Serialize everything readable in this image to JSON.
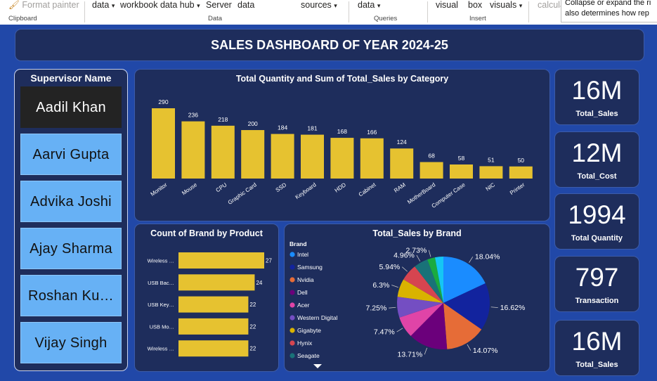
{
  "ribbon": {
    "items": [
      "Format painter",
      "data",
      "workbook data hub",
      "Server",
      "data",
      "sources",
      "data",
      "visual",
      "box",
      "visuals",
      "calcula"
    ],
    "groups": [
      "Clipboard",
      "Data",
      "Queries",
      "Insert"
    ],
    "tooltip_lines": [
      "Collapse or expand the ri",
      "also determines how rep"
    ]
  },
  "dashboard": {
    "title": "SALES DASHBOARD OF YEAR 2024-25",
    "supervisor": {
      "title": "Supervisor Name",
      "items": [
        "Aadil Khan",
        "Aarvi Gupta",
        "Advika Joshi",
        "Ajay Sharma",
        "Roshan Ku…",
        "Vijay Singh"
      ],
      "selected": "Aadil Khan"
    },
    "kpis": [
      {
        "value": "16M",
        "label": "Total_Sales"
      },
      {
        "value": "12M",
        "label": "Total_Cost"
      },
      {
        "value": "1994",
        "label": "Total Quantity"
      },
      {
        "value": "797",
        "label": "Transaction"
      },
      {
        "value": "16M",
        "label": "Total_Sales"
      }
    ]
  },
  "chart_data": [
    {
      "type": "bar",
      "title": "Total Quantity and Sum of Total_Sales by Category",
      "categories": [
        "Monitor",
        "Mouse",
        "CPU",
        "Graphic Card",
        "SSD",
        "Keyboard",
        "HDD",
        "Cabinet",
        "RAM",
        "MotherBoard",
        "Computer Case",
        "NIC",
        "Printer"
      ],
      "values": [
        290,
        236,
        218,
        200,
        184,
        181,
        168,
        166,
        124,
        68,
        58,
        51,
        50
      ],
      "color": "#e6c230"
    },
    {
      "type": "bar",
      "orientation": "horizontal",
      "title": "Count of Brand by Product",
      "categories": [
        "Wireless …",
        "USB Bac…",
        "USB Key…",
        "USB Mo…",
        "Wireless …"
      ],
      "values": [
        27,
        24,
        22,
        22,
        22
      ],
      "color": "#e6c230"
    },
    {
      "type": "pie",
      "title": "Total_Sales by Brand",
      "legend_title": "Brand",
      "legend": [
        "Intel",
        "Samsung",
        "Nvidia",
        "Dell",
        "Acer",
        "Western Digital",
        "Gigabyte",
        "Hynix",
        "Seagate"
      ],
      "slices": [
        {
          "value": 18.04,
          "label": "18.04%",
          "color": "#1a8cff"
        },
        {
          "value": 16.62,
          "label": "16.62%",
          "color": "#12239e"
        },
        {
          "value": 14.07,
          "label": "14.07%",
          "color": "#e66c37"
        },
        {
          "value": 13.71,
          "label": "13.71%",
          "color": "#6b007b"
        },
        {
          "value": 7.47,
          "label": "7.47%",
          "color": "#e044a7"
        },
        {
          "value": 7.25,
          "label": "7.25%",
          "color": "#744ec2"
        },
        {
          "value": 6.3,
          "label": "6.3%",
          "color": "#d9b300"
        },
        {
          "value": 5.94,
          "label": "5.94%",
          "color": "#d64550"
        },
        {
          "value": 4.96,
          "label": "4.96%",
          "color": "#197278"
        },
        {
          "value": 2.73,
          "label": "2.73%",
          "color": "#1aab40"
        },
        {
          "value": 2.91,
          "label": "",
          "color": "#15c6f4"
        }
      ]
    }
  ]
}
